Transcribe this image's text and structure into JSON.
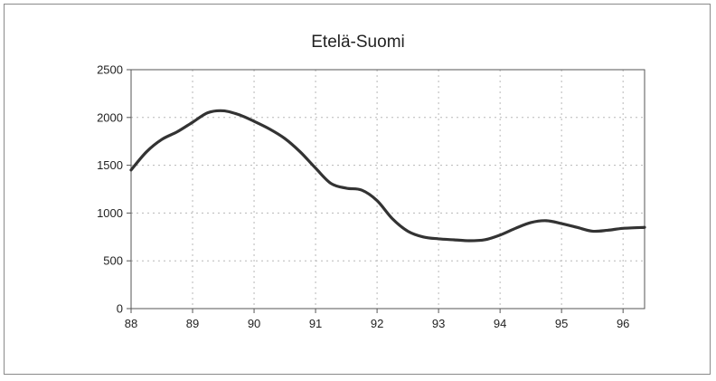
{
  "chart_data": {
    "type": "line",
    "title": "Etelä-Suomi",
    "xlabel": "",
    "ylabel": "",
    "x_ticks": [
      "88",
      "89",
      "90",
      "91",
      "92",
      "93",
      "94",
      "95",
      "96"
    ],
    "y_ticks": [
      "0",
      "500",
      "1000",
      "1500",
      "2000",
      "2500"
    ],
    "xlim": [
      88,
      96.35
    ],
    "ylim": [
      0,
      2500
    ],
    "grid": true,
    "legend": "none",
    "series": [
      {
        "color": "#333333",
        "x": [
          88.0,
          88.25,
          88.5,
          88.75,
          89.0,
          89.25,
          89.5,
          89.75,
          90.0,
          90.25,
          90.5,
          90.75,
          91.0,
          91.25,
          91.5,
          91.75,
          92.0,
          92.25,
          92.5,
          92.75,
          93.0,
          93.25,
          93.5,
          93.75,
          94.0,
          94.25,
          94.5,
          94.75,
          95.0,
          95.25,
          95.5,
          95.75,
          96.0,
          96.35
        ],
        "y": [
          1450,
          1640,
          1770,
          1850,
          1950,
          2050,
          2070,
          2030,
          1960,
          1880,
          1780,
          1640,
          1470,
          1310,
          1260,
          1240,
          1130,
          940,
          810,
          750,
          730,
          720,
          710,
          720,
          770,
          840,
          900,
          920,
          890,
          850,
          810,
          820,
          840,
          850
        ]
      }
    ]
  }
}
